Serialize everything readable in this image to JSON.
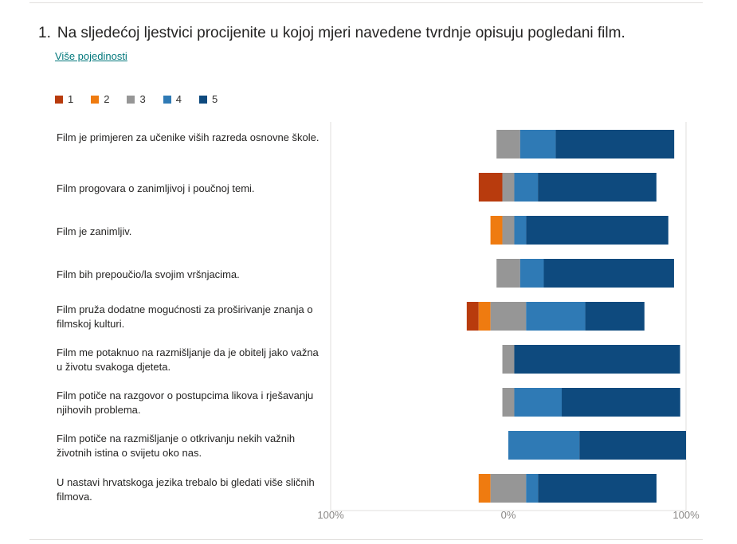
{
  "question": {
    "number": "1.",
    "text": "Na sljedećoj ljestvici procijenite u kojoj mjeri navedene tvrdnje opisuju pogledani film.",
    "details_link": "Više pojedinosti"
  },
  "colors": {
    "1": "#b83b0d",
    "2": "#ef7b10",
    "3": "#969696",
    "4": "#2f7ab5",
    "5": "#0e4a7e"
  },
  "chart_data": {
    "type": "bar",
    "orientation": "horizontal",
    "stacked": "diverging",
    "legend": [
      "1",
      "2",
      "3",
      "4",
      "5"
    ],
    "legend_position": "top-left",
    "xlim": [
      -100,
      100
    ],
    "x_ticks": [
      "100%",
      "0%",
      "100%"
    ],
    "grid": false,
    "categories": [
      "Film je primjeren za učenike viših razreda osnovne škole.",
      "Film progovara o zanimljivoj i poučnoj temi.",
      "Film je zanimljiv.",
      "Film bih prepoučio/la svojim vršnjacima.",
      "Film pruža dodatne mogućnosti za proširivanje znanja o filmskoj kulturi.",
      "Film me potaknuo na razmišljanje da je obitelj jako važna u životu svakoga djeteta.",
      "Film potiče na razgovor o postupcima likova i rješavanju njihovih problema.",
      "Film potiče na razmišljanje o otkrivanju nekih važnih životnih istina o svijetu oko nas.",
      "U nastavi hrvatskoga jezika trebalo bi gledati više sličnih filmova."
    ],
    "series": [
      {
        "name": "1",
        "values": [
          0,
          13.3,
          0,
          0,
          6.7,
          0,
          0,
          0,
          0
        ]
      },
      {
        "name": "2",
        "values": [
          0,
          0,
          6.7,
          0,
          6.7,
          0,
          0,
          0,
          6.7
        ]
      },
      {
        "name": "3",
        "values": [
          13.3,
          6.7,
          6.7,
          13.3,
          20,
          6.7,
          6.7,
          0,
          20
        ]
      },
      {
        "name": "4",
        "values": [
          20,
          13.3,
          6.7,
          13.3,
          33.3,
          0,
          26.7,
          40,
          6.7
        ]
      },
      {
        "name": "5",
        "values": [
          66.7,
          66.7,
          80,
          73.3,
          33.3,
          93.3,
          66.7,
          60,
          66.7
        ]
      }
    ]
  }
}
